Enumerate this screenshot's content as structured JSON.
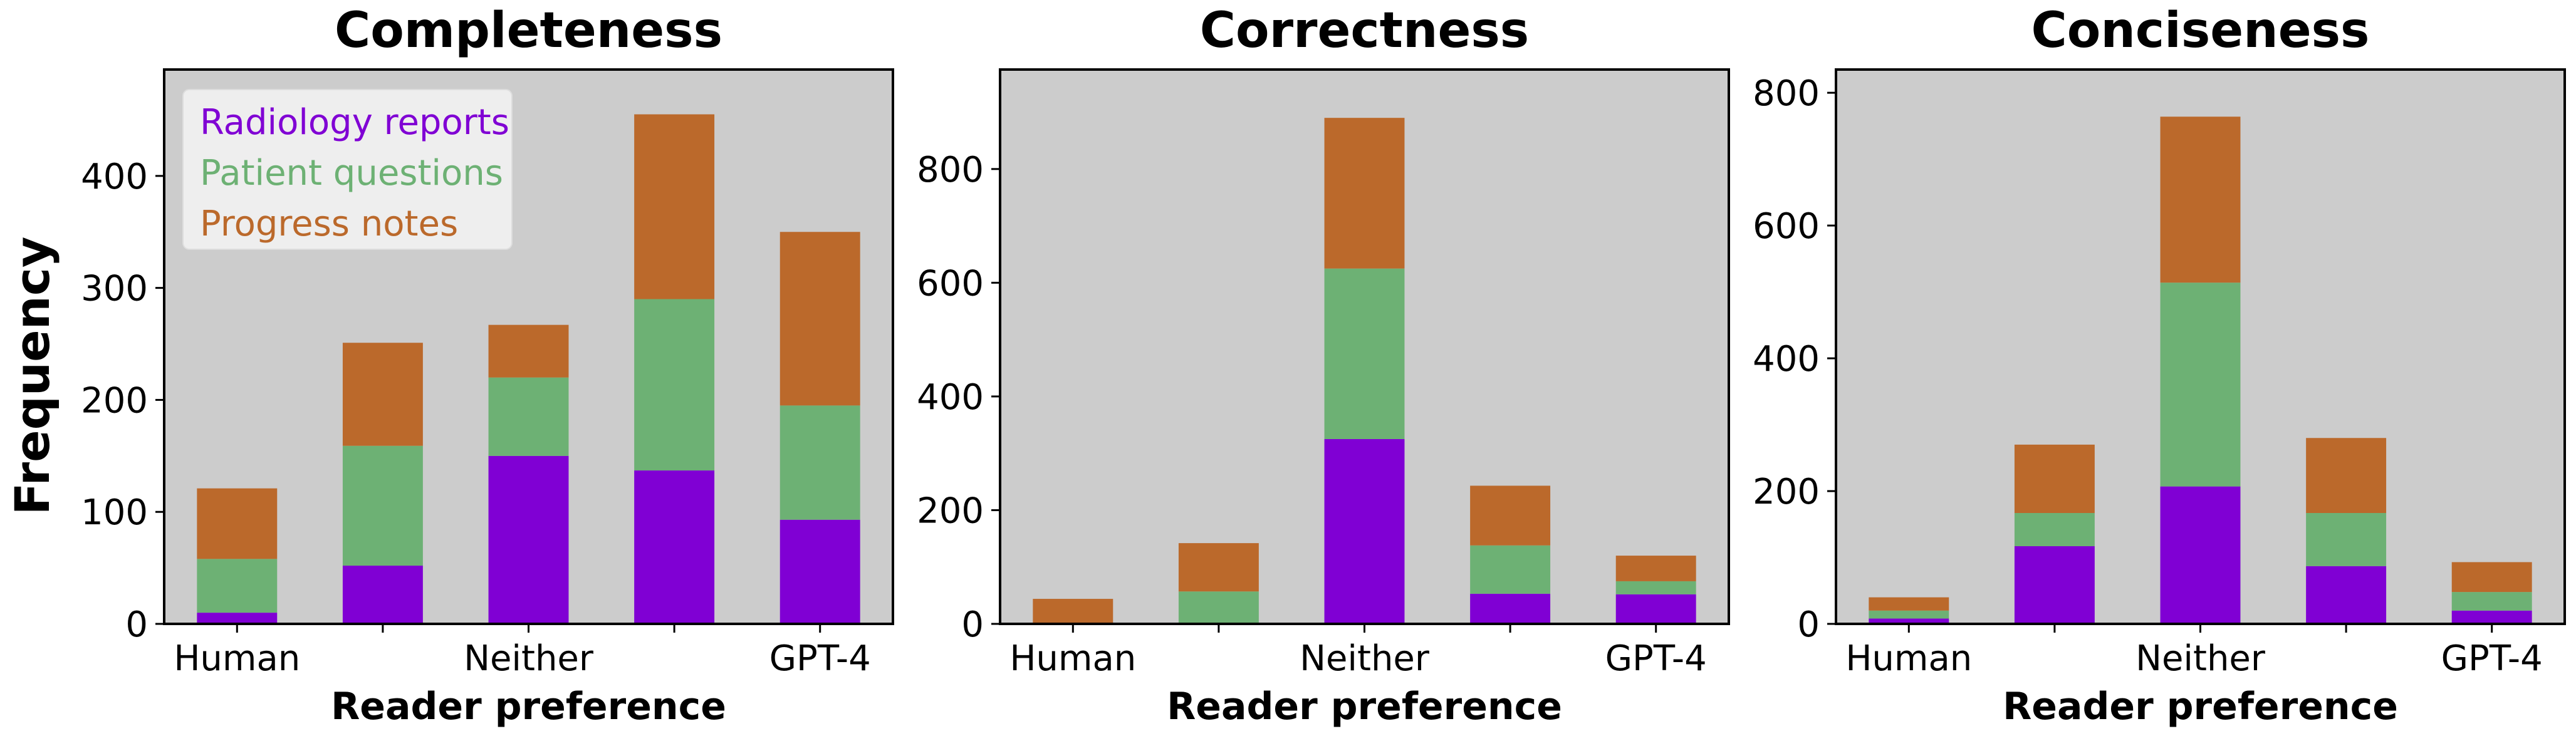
{
  "figure": {
    "ylabel": "Frequency"
  },
  "chart_data": [
    {
      "type": "bar",
      "stacked": true,
      "title": "Completeness",
      "xlabel": "Reader preference",
      "x_tick_labels": [
        "Human",
        "",
        "Neither",
        "",
        "GPT-4"
      ],
      "categories": [
        "1",
        "2",
        "3",
        "4",
        "5"
      ],
      "ylim": [
        0,
        495
      ],
      "yticks": [
        0,
        100,
        200,
        300,
        400
      ],
      "series": [
        {
          "name": "Radiology reports",
          "color": "#8000d4",
          "values": [
            10,
            52,
            150,
            137,
            93
          ]
        },
        {
          "name": "Patient questions",
          "color": "#6db174",
          "values": [
            48,
            107,
            70,
            153,
            102
          ]
        },
        {
          "name": "Progress notes",
          "color": "#bb692b",
          "values": [
            63,
            92,
            47,
            165,
            155
          ]
        }
      ],
      "legend": {
        "location": "top-left",
        "entries": [
          "Radiology reports",
          "Patient questions",
          "Progress notes"
        ]
      },
      "grid": false
    },
    {
      "type": "bar",
      "stacked": true,
      "title": "Correctness",
      "xlabel": "Reader preference",
      "x_tick_labels": [
        "Human",
        "",
        "Neither",
        "",
        "GPT-4"
      ],
      "categories": [
        "1",
        "2",
        "3",
        "4",
        "5"
      ],
      "ylim": [
        0,
        975
      ],
      "yticks": [
        0,
        200,
        400,
        600,
        800
      ],
      "series": [
        {
          "name": "Radiology reports",
          "color": "#8000d4",
          "values": [
            0,
            0,
            325,
            53,
            52
          ]
        },
        {
          "name": "Patient questions",
          "color": "#6db174",
          "values": [
            0,
            57,
            300,
            85,
            23
          ]
        },
        {
          "name": "Progress notes",
          "color": "#bb692b",
          "values": [
            44,
            85,
            265,
            105,
            45
          ]
        }
      ],
      "grid": false
    },
    {
      "type": "bar",
      "stacked": true,
      "title": "Conciseness",
      "xlabel": "Reader preference",
      "x_tick_labels": [
        "Human",
        "",
        "Neither",
        "",
        "GPT-4"
      ],
      "categories": [
        "1",
        "2",
        "3",
        "4",
        "5"
      ],
      "ylim": [
        0,
        835
      ],
      "yticks": [
        0,
        200,
        400,
        600,
        800
      ],
      "series": [
        {
          "name": "Radiology reports",
          "color": "#8000d4",
          "values": [
            8,
            117,
            207,
            87,
            20
          ]
        },
        {
          "name": "Patient questions",
          "color": "#6db174",
          "values": [
            12,
            50,
            307,
            80,
            28
          ]
        },
        {
          "name": "Progress notes",
          "color": "#bb692b",
          "values": [
            20,
            103,
            250,
            113,
            45
          ]
        }
      ],
      "grid": false
    }
  ]
}
